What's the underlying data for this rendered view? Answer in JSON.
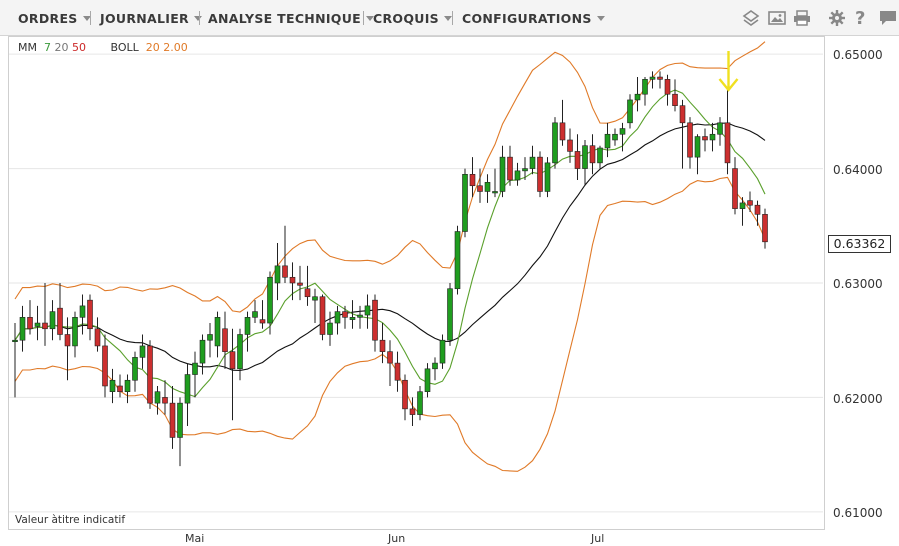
{
  "menu": {
    "items": [
      {
        "label": "ORDRES"
      },
      {
        "label": "JOURNALIER"
      },
      {
        "label": "ANALYSE TECHNIQUE"
      },
      {
        "label": "CROQUIS"
      },
      {
        "label": "CONFIGURATIONS"
      }
    ],
    "tools": [
      "layers-icon",
      "image-icon",
      "print-icon",
      "gear-icon",
      "help-icon",
      "comment-icon"
    ]
  },
  "legend": {
    "mm_label": "MM",
    "mm_fast": "7",
    "mm_mid": "20",
    "mm_slow": "50",
    "boll_label": "BOLL",
    "boll_period": "20",
    "boll_dev": "2.00"
  },
  "note": "Valeur àtitre indicatif",
  "last_price": "0.63362",
  "colors": {
    "bull": "#1f9d1f",
    "bear": "#cc2f2f",
    "ma_fast": "#5aa02c",
    "ma_mid": "#111111",
    "bollinger": "#e07a28",
    "arrow": "#f0e020"
  },
  "chart_data": {
    "type": "candlestick",
    "y_ticks": [
      "0.61000",
      "0.62000",
      "0.63000",
      "0.64000",
      "0.65000"
    ],
    "ylim": [
      0.6085,
      0.6515
    ],
    "x_labels": [
      {
        "label": "Mai",
        "index": 22
      },
      {
        "label": "Jun",
        "index": 49
      },
      {
        "label": "Jul",
        "index": 76
      }
    ],
    "grid": true,
    "candles": [
      [
        0.625,
        0.6265,
        0.62,
        0.625
      ],
      [
        0.625,
        0.628,
        0.624,
        0.627
      ],
      [
        0.627,
        0.6285,
        0.6255,
        0.626
      ],
      [
        0.6262,
        0.628,
        0.625,
        0.6265
      ],
      [
        0.6265,
        0.63,
        0.6245,
        0.626
      ],
      [
        0.626,
        0.6285,
        0.625,
        0.6275
      ],
      [
        0.6278,
        0.63,
        0.625,
        0.6255
      ],
      [
        0.6255,
        0.627,
        0.6215,
        0.6245
      ],
      [
        0.6245,
        0.6275,
        0.6235,
        0.627
      ],
      [
        0.627,
        0.629,
        0.6255,
        0.628
      ],
      [
        0.6285,
        0.629,
        0.625,
        0.626
      ],
      [
        0.626,
        0.627,
        0.624,
        0.6245
      ],
      [
        0.6245,
        0.6255,
        0.62,
        0.621
      ],
      [
        0.6205,
        0.6225,
        0.6195,
        0.6215
      ],
      [
        0.621,
        0.622,
        0.62,
        0.6205
      ],
      [
        0.6205,
        0.622,
        0.6195,
        0.6215
      ],
      [
        0.6215,
        0.624,
        0.6205,
        0.6235
      ],
      [
        0.6235,
        0.6255,
        0.6225,
        0.6245
      ],
      [
        0.6245,
        0.625,
        0.619,
        0.6195
      ],
      [
        0.6195,
        0.621,
        0.6185,
        0.6205
      ],
      [
        0.62,
        0.6215,
        0.6185,
        0.6195
      ],
      [
        0.6195,
        0.621,
        0.6155,
        0.6165
      ],
      [
        0.6165,
        0.62,
        0.614,
        0.6195
      ],
      [
        0.6195,
        0.623,
        0.6175,
        0.622
      ],
      [
        0.622,
        0.624,
        0.62,
        0.623
      ],
      [
        0.623,
        0.6255,
        0.622,
        0.625
      ],
      [
        0.625,
        0.6265,
        0.6235,
        0.6255
      ],
      [
        0.6245,
        0.6275,
        0.6235,
        0.627
      ],
      [
        0.626,
        0.6275,
        0.6225,
        0.624
      ],
      [
        0.624,
        0.626,
        0.618,
        0.6225
      ],
      [
        0.6225,
        0.626,
        0.6215,
        0.6255
      ],
      [
        0.6255,
        0.6275,
        0.624,
        0.627
      ],
      [
        0.627,
        0.6285,
        0.6265,
        0.6275
      ],
      [
        0.6268,
        0.6285,
        0.626,
        0.6265
      ],
      [
        0.6265,
        0.631,
        0.6255,
        0.6305
      ],
      [
        0.63,
        0.6335,
        0.6285,
        0.6315
      ],
      [
        0.6315,
        0.635,
        0.63,
        0.6305
      ],
      [
        0.6305,
        0.6318,
        0.6285,
        0.63
      ],
      [
        0.63,
        0.6315,
        0.6285,
        0.6298
      ],
      [
        0.6295,
        0.6315,
        0.628,
        0.6288
      ],
      [
        0.6285,
        0.6295,
        0.6265,
        0.6288
      ],
      [
        0.6288,
        0.629,
        0.625,
        0.6255
      ],
      [
        0.6255,
        0.6275,
        0.6245,
        0.6265
      ],
      [
        0.6265,
        0.628,
        0.6255,
        0.6275
      ],
      [
        0.6275,
        0.628,
        0.626,
        0.627
      ],
      [
        0.6268,
        0.6285,
        0.626,
        0.627
      ],
      [
        0.627,
        0.628,
        0.626,
        0.6272
      ],
      [
        0.6272,
        0.629,
        0.626,
        0.628
      ],
      [
        0.6285,
        0.629,
        0.624,
        0.625
      ],
      [
        0.625,
        0.6265,
        0.623,
        0.624
      ],
      [
        0.624,
        0.625,
        0.621,
        0.623
      ],
      [
        0.623,
        0.624,
        0.6205,
        0.6215
      ],
      [
        0.6215,
        0.622,
        0.618,
        0.619
      ],
      [
        0.619,
        0.62,
        0.6175,
        0.6185
      ],
      [
        0.6185,
        0.621,
        0.618,
        0.6205
      ],
      [
        0.6205,
        0.623,
        0.62,
        0.6225
      ],
      [
        0.6225,
        0.6235,
        0.6215,
        0.623
      ],
      [
        0.623,
        0.6255,
        0.6225,
        0.625
      ],
      [
        0.625,
        0.63,
        0.6245,
        0.6295
      ],
      [
        0.6295,
        0.635,
        0.629,
        0.6345
      ],
      [
        0.6345,
        0.64,
        0.634,
        0.6395
      ],
      [
        0.6395,
        0.641,
        0.6375,
        0.6385
      ],
      [
        0.6385,
        0.64,
        0.637,
        0.638
      ],
      [
        0.638,
        0.6395,
        0.637,
        0.6388
      ],
      [
        0.638,
        0.64,
        0.6375,
        0.638
      ],
      [
        0.638,
        0.642,
        0.6375,
        0.641
      ],
      [
        0.641,
        0.642,
        0.6385,
        0.639
      ],
      [
        0.639,
        0.6405,
        0.6385,
        0.6398
      ],
      [
        0.6398,
        0.641,
        0.639,
        0.64
      ],
      [
        0.64,
        0.642,
        0.6395,
        0.641
      ],
      [
        0.641,
        0.6415,
        0.6375,
        0.638
      ],
      [
        0.638,
        0.641,
        0.6375,
        0.6405
      ],
      [
        0.6405,
        0.6445,
        0.64,
        0.644
      ],
      [
        0.644,
        0.646,
        0.642,
        0.6425
      ],
      [
        0.6425,
        0.6435,
        0.6405,
        0.6415
      ],
      [
        0.6415,
        0.643,
        0.639,
        0.64
      ],
      [
        0.64,
        0.6425,
        0.6385,
        0.642
      ],
      [
        0.642,
        0.643,
        0.6395,
        0.6405
      ],
      [
        0.6405,
        0.642,
        0.64,
        0.6418
      ],
      [
        0.6418,
        0.644,
        0.641,
        0.643
      ],
      [
        0.6425,
        0.6435,
        0.642,
        0.643
      ],
      [
        0.643,
        0.644,
        0.6415,
        0.6435
      ],
      [
        0.644,
        0.6465,
        0.6435,
        0.646
      ],
      [
        0.646,
        0.648,
        0.645,
        0.6465
      ],
      [
        0.6465,
        0.648,
        0.6455,
        0.6478
      ],
      [
        0.6478,
        0.6485,
        0.647,
        0.648
      ],
      [
        0.648,
        0.6485,
        0.647,
        0.6478
      ],
      [
        0.6478,
        0.6482,
        0.6455,
        0.6465
      ],
      [
        0.6465,
        0.6478,
        0.645,
        0.6455
      ],
      [
        0.6455,
        0.646,
        0.64,
        0.644
      ],
      [
        0.644,
        0.6445,
        0.64,
        0.641
      ],
      [
        0.641,
        0.643,
        0.6395,
        0.6428
      ],
      [
        0.6428,
        0.6435,
        0.6415,
        0.6425
      ],
      [
        0.6425,
        0.644,
        0.6415,
        0.643
      ],
      [
        0.643,
        0.6445,
        0.642,
        0.644
      ],
      [
        0.644,
        0.647,
        0.6395,
        0.6405
      ],
      [
        0.64,
        0.641,
        0.636,
        0.6365
      ],
      [
        0.6365,
        0.6375,
        0.635,
        0.637
      ],
      [
        0.6372,
        0.638,
        0.6362,
        0.6368
      ],
      [
        0.6368,
        0.6372,
        0.635,
        0.636
      ],
      [
        0.636,
        0.6365,
        0.633,
        0.6336
      ]
    ]
  }
}
